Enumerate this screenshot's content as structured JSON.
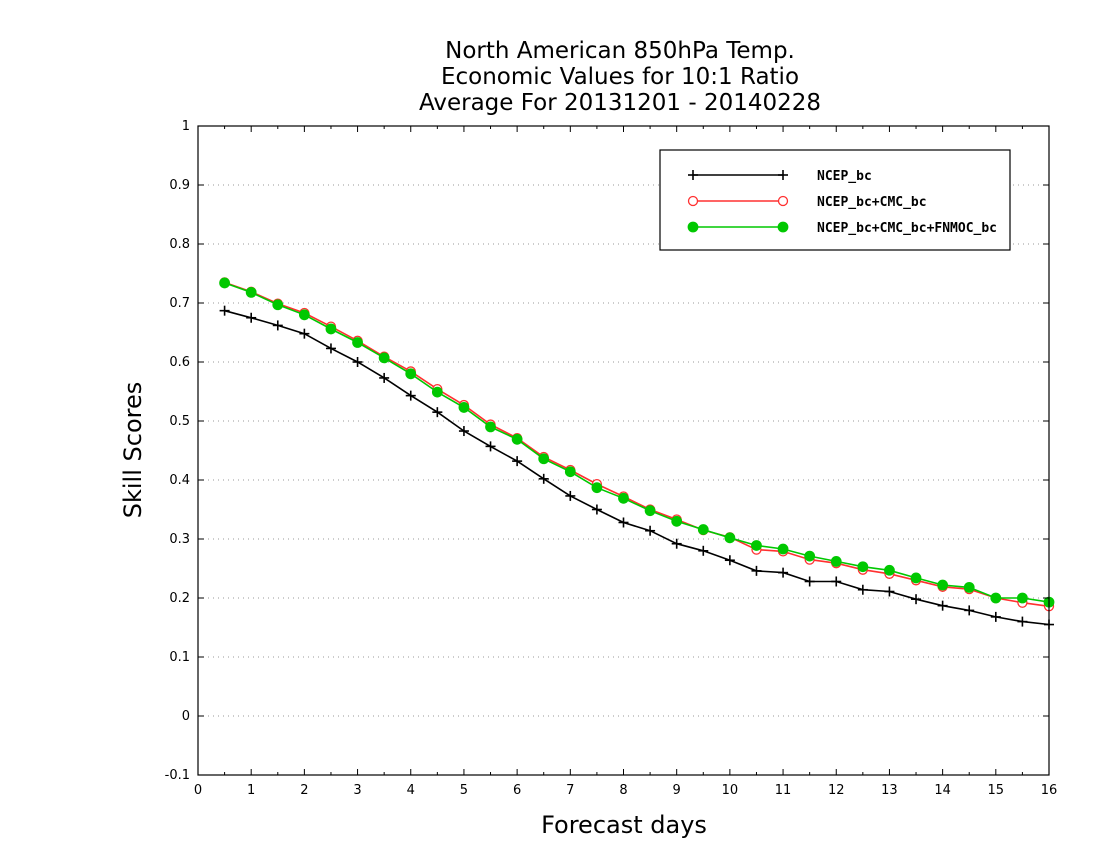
{
  "chart_data": {
    "type": "line",
    "title_lines": [
      "North American 850hPa Temp.",
      "Economic Values for 10:1 Ratio",
      "Average For 20131201 - 20140228"
    ],
    "xlabel": "Forecast days",
    "ylabel": "Skill Scores",
    "xlim": [
      0,
      16
    ],
    "ylim": [
      -0.1,
      1
    ],
    "xticks": [
      0,
      1,
      2,
      3,
      4,
      5,
      6,
      7,
      8,
      9,
      10,
      11,
      12,
      13,
      14,
      15,
      16
    ],
    "yticks": [
      -0.1,
      0,
      0.1,
      0.2,
      0.3,
      0.4,
      0.5,
      0.6,
      0.7,
      0.8,
      0.9,
      1
    ],
    "ytick_labels": [
      "-0.1",
      "0",
      "0.1",
      "0.2",
      "0.3",
      "0.4",
      "0.5",
      "0.6",
      "0.7",
      "0.8",
      "0.9",
      "1"
    ],
    "grid": "horizontal dotted",
    "legend_position": "top-right",
    "x": [
      0.5,
      1,
      1.5,
      2,
      2.5,
      3,
      3.5,
      4,
      4.5,
      5,
      5.5,
      6,
      6.5,
      7,
      7.5,
      8,
      8.5,
      9,
      9.5,
      10,
      10.5,
      11,
      11.5,
      12,
      12.5,
      13,
      13.5,
      14,
      14.5,
      15,
      15.5,
      16
    ],
    "series": [
      {
        "name": "NCEP_bc",
        "color": "#000000",
        "marker": "plus",
        "values": [
          0.687,
          0.675,
          0.662,
          0.648,
          0.623,
          0.6,
          0.573,
          0.543,
          0.515,
          0.483,
          0.457,
          0.432,
          0.402,
          0.373,
          0.35,
          0.328,
          0.314,
          0.292,
          0.28,
          0.264,
          0.246,
          0.243,
          0.228,
          0.228,
          0.214,
          0.211,
          0.198,
          0.187,
          0.179,
          0.168,
          0.16,
          0.155
        ]
      },
      {
        "name": "NCEP_bc+CMC_bc",
        "color": "#ff3030",
        "marker": "open-circle",
        "values": [
          0.735,
          0.719,
          0.699,
          0.683,
          0.66,
          0.636,
          0.609,
          0.584,
          0.554,
          0.527,
          0.494,
          0.471,
          0.439,
          0.417,
          0.393,
          0.372,
          0.35,
          0.333,
          0.315,
          0.303,
          0.282,
          0.279,
          0.265,
          0.259,
          0.248,
          0.241,
          0.23,
          0.219,
          0.215,
          0.2,
          0.192,
          0.186
        ]
      },
      {
        "name": "NCEP_bc+CMC_bc+FNMOC_bc",
        "color": "#00c800",
        "marker": "filled-circle",
        "values": [
          0.734,
          0.718,
          0.697,
          0.68,
          0.656,
          0.633,
          0.607,
          0.58,
          0.549,
          0.523,
          0.49,
          0.469,
          0.436,
          0.414,
          0.387,
          0.369,
          0.348,
          0.33,
          0.316,
          0.302,
          0.289,
          0.283,
          0.271,
          0.262,
          0.253,
          0.247,
          0.234,
          0.222,
          0.218,
          0.2,
          0.2,
          0.193
        ]
      }
    ]
  }
}
